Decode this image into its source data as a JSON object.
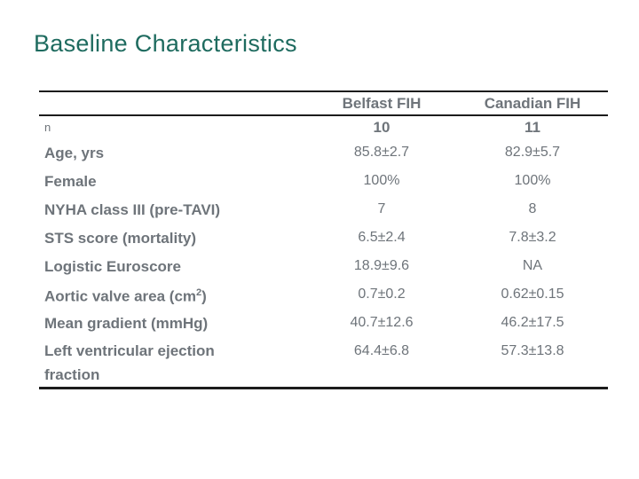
{
  "colors": {
    "title_color": "#1e6b5f",
    "text_color": "#6e747a",
    "line_color": "#1c1c1c"
  },
  "slide": {
    "title": "Baseline Characteristics"
  },
  "table": {
    "columns": [
      "",
      "Belfast FIH",
      "Canadian FIH"
    ],
    "n_row": {
      "label": "n",
      "values": [
        "10",
        "11"
      ]
    },
    "rows": [
      {
        "label": "Age, yrs",
        "belfast": "85.8±2.7",
        "canadian": "82.9±5.7"
      },
      {
        "label": "Female",
        "belfast": "100%",
        "canadian": "100%"
      },
      {
        "label": "NYHA class III (pre-TAVI)",
        "belfast": "7",
        "canadian": "8"
      },
      {
        "label": "STS score (mortality)",
        "belfast": "6.5±2.4",
        "canadian": "7.8±3.2"
      },
      {
        "label": "Logistic Euroscore",
        "belfast": "18.9±9.6",
        "canadian": "NA"
      },
      {
        "label_pre": "Aortic valve area (cm",
        "label_sup": "2",
        "label_post": ")",
        "belfast": "0.7±0.2",
        "canadian": "0.62±0.15"
      },
      {
        "label": "Mean gradient (mmHg)",
        "belfast": "40.7±12.6",
        "canadian": "46.2±17.5"
      },
      {
        "label": "Left ventricular ejection fraction",
        "belfast": "64.4±6.8",
        "canadian": "57.3±13.8"
      }
    ]
  }
}
